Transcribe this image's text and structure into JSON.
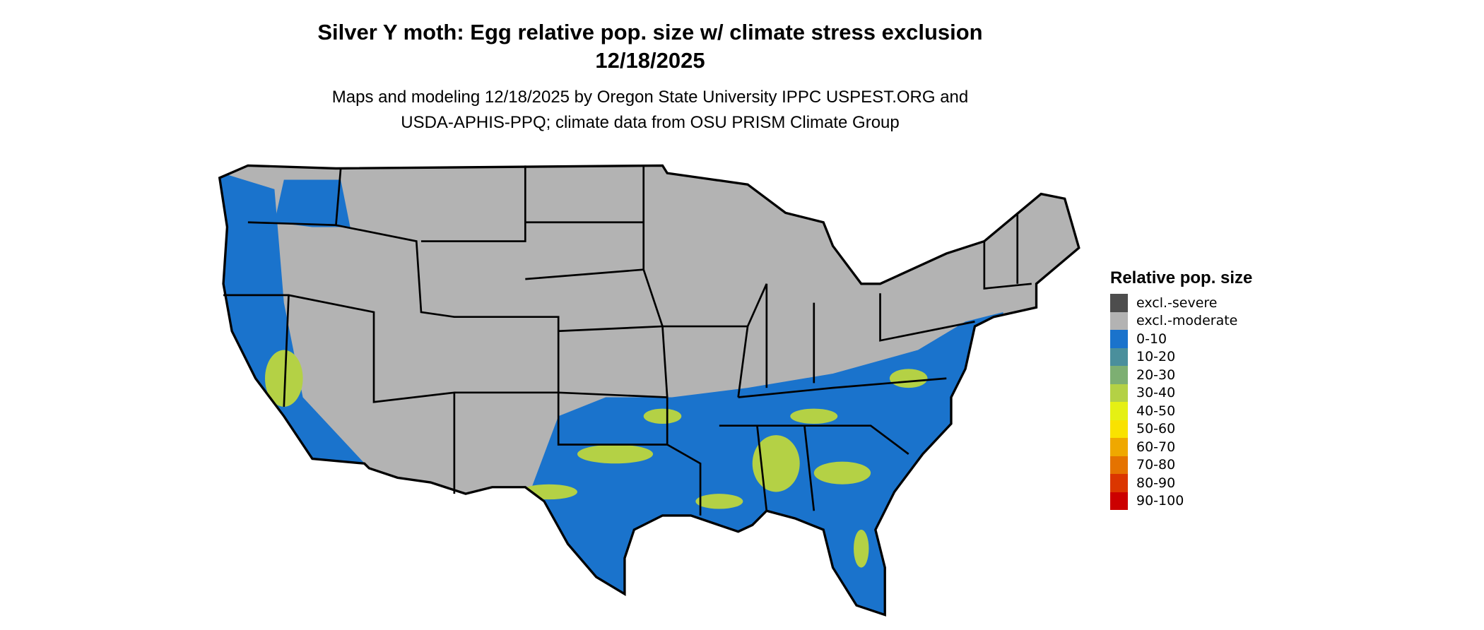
{
  "title": {
    "line1": "Silver Y moth: Egg relative pop. size w/ climate stress exclusion",
    "line2": "12/18/2025"
  },
  "subtitle": {
    "line1": "Maps and modeling 12/18/2025 by Oregon State University IPPC USPEST.ORG and",
    "line2": "USDA-APHIS-PPQ; climate data from OSU PRISM Climate Group"
  },
  "legend": {
    "title": "Relative pop. size",
    "items": [
      {
        "label": "excl.-severe",
        "color": "#4d4d4d"
      },
      {
        "label": "excl.-moderate",
        "color": "#b3b3b3"
      },
      {
        "label": "0-10",
        "color": "#1a73cc"
      },
      {
        "label": "10-20",
        "color": "#4a8f9c"
      },
      {
        "label": "20-30",
        "color": "#7daf72"
      },
      {
        "label": "30-40",
        "color": "#b4d145"
      },
      {
        "label": "40-50",
        "color": "#e5f014"
      },
      {
        "label": "50-60",
        "color": "#f9e200"
      },
      {
        "label": "60-70",
        "color": "#efa800"
      },
      {
        "label": "70-80",
        "color": "#e57300"
      },
      {
        "label": "80-90",
        "color": "#db3600"
      },
      {
        "label": "90-100",
        "color": "#cc0000"
      }
    ]
  },
  "map": {
    "region": "Contiguous United States",
    "dominant_categories": [
      "excl.-moderate",
      "0-10",
      "30-40"
    ]
  }
}
